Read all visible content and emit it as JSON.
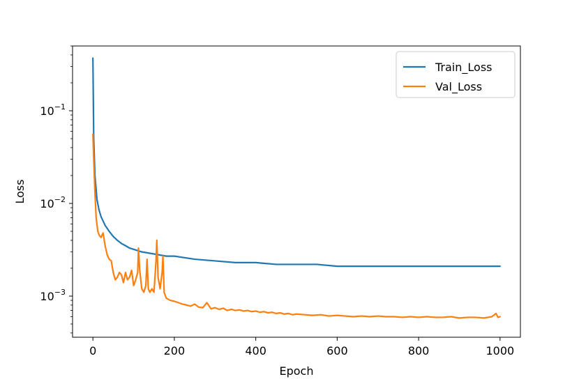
{
  "chart_data": {
    "type": "line",
    "xlabel": "Epoch",
    "ylabel": "Loss",
    "yscale": "log",
    "xlim": [
      -50,
      1050
    ],
    "ylim": [
      0.00036,
      0.5
    ],
    "x_ticks": [
      0,
      200,
      400,
      600,
      800,
      1000
    ],
    "x_tick_labels": [
      "0",
      "200",
      "400",
      "600",
      "800",
      "1000"
    ],
    "y_ticks": [
      0.001,
      0.01,
      0.1
    ],
    "y_tick_labels": [
      {
        "base": "10",
        "exp": "−3"
      },
      {
        "base": "10",
        "exp": "−2"
      },
      {
        "base": "10",
        "exp": "−1"
      }
    ],
    "grid": false,
    "legend_position": "top-right",
    "series": [
      {
        "name": "Train_Loss",
        "color": "#1f77b4",
        "x": [
          0,
          2,
          5,
          10,
          15,
          20,
          30,
          40,
          50,
          60,
          70,
          80,
          90,
          100,
          120,
          140,
          160,
          180,
          200,
          250,
          300,
          350,
          400,
          450,
          500,
          550,
          600,
          650,
          700,
          750,
          800,
          850,
          900,
          950,
          1000
        ],
        "y": [
          0.37,
          0.05,
          0.02,
          0.011,
          0.0085,
          0.0072,
          0.0058,
          0.005,
          0.0044,
          0.004,
          0.0037,
          0.0035,
          0.0033,
          0.0032,
          0.003,
          0.0029,
          0.0028,
          0.0027,
          0.0027,
          0.0025,
          0.0024,
          0.0023,
          0.0023,
          0.0022,
          0.0022,
          0.0022,
          0.0021,
          0.0021,
          0.0021,
          0.0021,
          0.0021,
          0.0021,
          0.0021,
          0.0021,
          0.0021
        ]
      },
      {
        "name": "Val_Loss",
        "color": "#ff7f0e",
        "x": [
          0,
          2,
          5,
          8,
          12,
          16,
          20,
          25,
          30,
          35,
          40,
          45,
          50,
          55,
          60,
          65,
          70,
          75,
          80,
          85,
          90,
          95,
          100,
          105,
          110,
          112,
          115,
          120,
          125,
          130,
          133,
          136,
          140,
          145,
          150,
          155,
          157,
          160,
          165,
          170,
          172,
          175,
          180,
          190,
          200,
          210,
          220,
          230,
          240,
          250,
          260,
          270,
          280,
          290,
          300,
          310,
          320,
          330,
          340,
          350,
          360,
          370,
          380,
          390,
          400,
          410,
          420,
          430,
          440,
          450,
          460,
          470,
          480,
          490,
          500,
          520,
          540,
          560,
          580,
          600,
          620,
          640,
          660,
          680,
          700,
          720,
          740,
          760,
          780,
          800,
          820,
          840,
          860,
          880,
          900,
          920,
          940,
          960,
          980,
          990,
          995,
          1000
        ],
        "y": [
          0.056,
          0.03,
          0.013,
          0.007,
          0.005,
          0.0045,
          0.0043,
          0.0048,
          0.0035,
          0.0028,
          0.0025,
          0.0024,
          0.0018,
          0.0015,
          0.0016,
          0.0018,
          0.0017,
          0.0014,
          0.0018,
          0.0015,
          0.0016,
          0.0019,
          0.0013,
          0.0015,
          0.0018,
          0.0033,
          0.0019,
          0.0012,
          0.0011,
          0.0013,
          0.0025,
          0.0012,
          0.0011,
          0.0012,
          0.0011,
          0.0024,
          0.004,
          0.0016,
          0.0012,
          0.0018,
          0.0027,
          0.0011,
          0.00095,
          0.0009,
          0.00088,
          0.00085,
          0.00082,
          0.0008,
          0.00078,
          0.00082,
          0.00076,
          0.00075,
          0.00085,
          0.00073,
          0.00075,
          0.00072,
          0.00074,
          0.0007,
          0.00072,
          0.0007,
          0.00071,
          0.00069,
          0.0007,
          0.00068,
          0.00069,
          0.00067,
          0.00068,
          0.00066,
          0.00067,
          0.00065,
          0.00066,
          0.00064,
          0.00065,
          0.00063,
          0.00064,
          0.00063,
          0.00062,
          0.00063,
          0.00061,
          0.00062,
          0.00061,
          0.0006,
          0.00061,
          0.0006,
          0.00061,
          0.0006,
          0.0006,
          0.00059,
          0.0006,
          0.00059,
          0.0006,
          0.00059,
          0.00059,
          0.0006,
          0.00058,
          0.00059,
          0.00059,
          0.00058,
          0.0006,
          0.00065,
          0.00059,
          0.0006
        ]
      }
    ]
  }
}
